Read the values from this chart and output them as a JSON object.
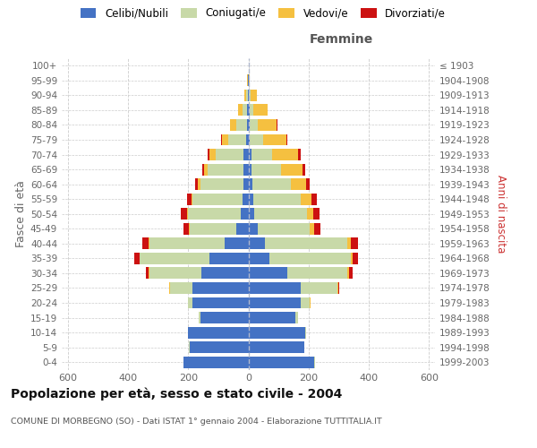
{
  "age_groups": [
    "0-4",
    "5-9",
    "10-14",
    "15-19",
    "20-24",
    "25-29",
    "30-34",
    "35-39",
    "40-44",
    "45-49",
    "50-54",
    "55-59",
    "60-64",
    "65-69",
    "70-74",
    "75-79",
    "80-84",
    "85-89",
    "90-94",
    "95-99",
    "100+"
  ],
  "birth_years": [
    "1999-2003",
    "1994-1998",
    "1989-1993",
    "1984-1988",
    "1979-1983",
    "1974-1978",
    "1969-1973",
    "1964-1968",
    "1959-1963",
    "1954-1958",
    "1949-1953",
    "1944-1948",
    "1939-1943",
    "1934-1938",
    "1929-1933",
    "1924-1928",
    "1919-1923",
    "1914-1918",
    "1909-1913",
    "1904-1908",
    "≤ 1903"
  ],
  "males": {
    "celibe": [
      215,
      195,
      200,
      160,
      185,
      185,
      155,
      130,
      80,
      40,
      25,
      20,
      15,
      15,
      15,
      8,
      5,
      5,
      2,
      1,
      0
    ],
    "coniugato": [
      2,
      2,
      2,
      5,
      15,
      75,
      175,
      230,
      250,
      155,
      175,
      165,
      145,
      120,
      95,
      60,
      35,
      15,
      5,
      1,
      0
    ],
    "vedovo": [
      0,
      0,
      0,
      0,
      1,
      2,
      2,
      2,
      2,
      2,
      5,
      5,
      8,
      12,
      20,
      20,
      20,
      15,
      5,
      2,
      0
    ],
    "divorziato": [
      0,
      0,
      0,
      0,
      1,
      2,
      8,
      18,
      20,
      20,
      20,
      15,
      8,
      5,
      5,
      2,
      0,
      0,
      0,
      0,
      0
    ]
  },
  "females": {
    "nubile": [
      220,
      185,
      190,
      155,
      175,
      175,
      130,
      70,
      55,
      30,
      20,
      15,
      12,
      10,
      10,
      5,
      5,
      5,
      2,
      1,
      0
    ],
    "coniugata": [
      2,
      2,
      3,
      10,
      30,
      120,
      200,
      270,
      275,
      175,
      175,
      160,
      130,
      100,
      70,
      45,
      25,
      10,
      5,
      1,
      0
    ],
    "vedova": [
      0,
      0,
      0,
      1,
      2,
      5,
      5,
      5,
      10,
      15,
      20,
      35,
      50,
      70,
      85,
      75,
      65,
      50,
      20,
      3,
      1
    ],
    "divorziata": [
      0,
      0,
      0,
      0,
      1,
      2,
      10,
      18,
      25,
      20,
      20,
      18,
      12,
      10,
      8,
      5,
      2,
      0,
      0,
      0,
      0
    ]
  },
  "colors": {
    "celibe": "#4472c4",
    "coniugato": "#c8d9a8",
    "vedovo": "#f5c040",
    "divorziato": "#cc1111"
  },
  "legend_labels": [
    "Celibi/Nubili",
    "Coniugati/e",
    "Vedovi/e",
    "Divorziati/e"
  ],
  "title": "Popolazione per età, sesso e stato civile - 2004",
  "subtitle": "COMUNE DI MORBEGNO (SO) - Dati ISTAT 1° gennaio 2004 - Elaborazione TUTTITALIA.IT",
  "ylabel_left": "Fasce di età",
  "ylabel_right": "Anni di nascita",
  "xlabel_right": "Femmine",
  "xlim": 620,
  "background_color": "#ffffff",
  "grid_color": "#cccccc"
}
